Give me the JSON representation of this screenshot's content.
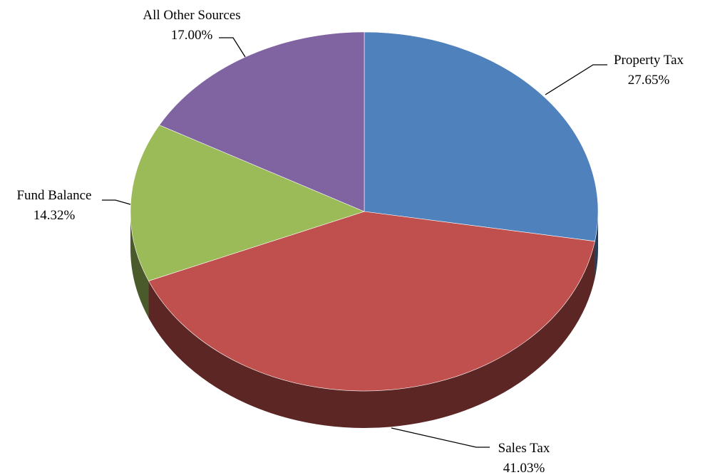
{
  "chart_data": {
    "type": "pie",
    "title": "",
    "slices": [
      {
        "label": "Property Tax",
        "value": 27.65,
        "value_text": "27.65%",
        "color": "#4f81bd"
      },
      {
        "label": "Sales Tax",
        "value": 41.03,
        "value_text": "41.03%",
        "color": "#c0504d"
      },
      {
        "label": "Fund Balance",
        "value": 14.32,
        "value_text": "14.32%",
        "color": "#9bbb59"
      },
      {
        "label": "All Other Sources",
        "value": 17.0,
        "value_text": "17.00%",
        "color": "#8064a2"
      }
    ],
    "style": "3d-pie",
    "legend": "none"
  }
}
